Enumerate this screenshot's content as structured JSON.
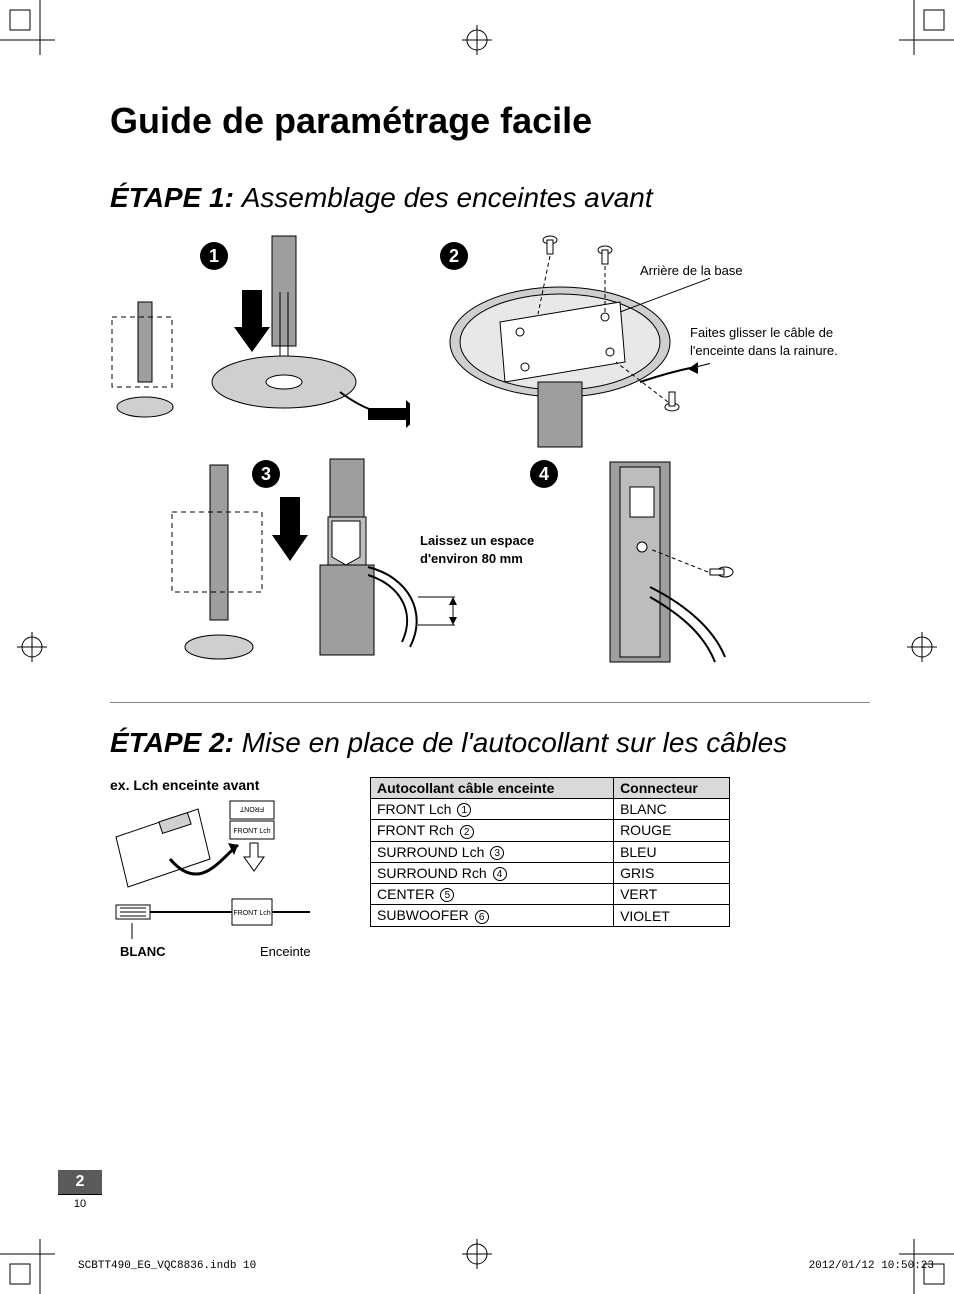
{
  "title": "Guide de paramétrage facile",
  "step1": {
    "prefix": "ÉTAPE 1:",
    "title": "Assemblage des enceintes avant",
    "badges": [
      "1",
      "2",
      "3",
      "4"
    ],
    "annot_rear": "Arrière de la base",
    "annot_slide": "Faites glisser le câble de l'enceinte dans la rainure.",
    "annot_gap": "Laissez un espace d'environ 80 mm"
  },
  "step2": {
    "prefix": "ÉTAPE 2:",
    "title": "Mise en place de l'autocollant sur les câbles",
    "example_label": "ex. Lch enceinte avant",
    "caption_left": "BLANC",
    "caption_right": "Enceinte",
    "table": {
      "head": [
        "Autocollant câble enceinte",
        "Connecteur"
      ],
      "rows": [
        {
          "label": "FRONT Lch",
          "num": "1",
          "color": "BLANC"
        },
        {
          "label": "FRONT Rch",
          "num": "2",
          "color": "ROUGE"
        },
        {
          "label": "SURROUND Lch",
          "num": "3",
          "color": "BLEU"
        },
        {
          "label": "SURROUND Rch",
          "num": "4",
          "color": "GRIS"
        },
        {
          "label": "CENTER",
          "num": "5",
          "color": "VERT"
        },
        {
          "label": "SUBWOOFER",
          "num": "6",
          "color": "VIOLET"
        }
      ]
    }
  },
  "page_tab": {
    "section": "2",
    "page": "10"
  },
  "footer": {
    "file": "SCBTT490_EG_VQC8836.indb   10",
    "timestamp": "2012/01/12   10:50:23"
  },
  "colors": {
    "text": "#000000",
    "bg": "#ffffff",
    "tab_bg": "#5a5a5a",
    "th_bg": "#d9d9d9",
    "rule": "#888888",
    "fig_gray": "#9e9e9e",
    "fig_dark": "#4a4a4a",
    "fig_light": "#cfcfcf"
  }
}
